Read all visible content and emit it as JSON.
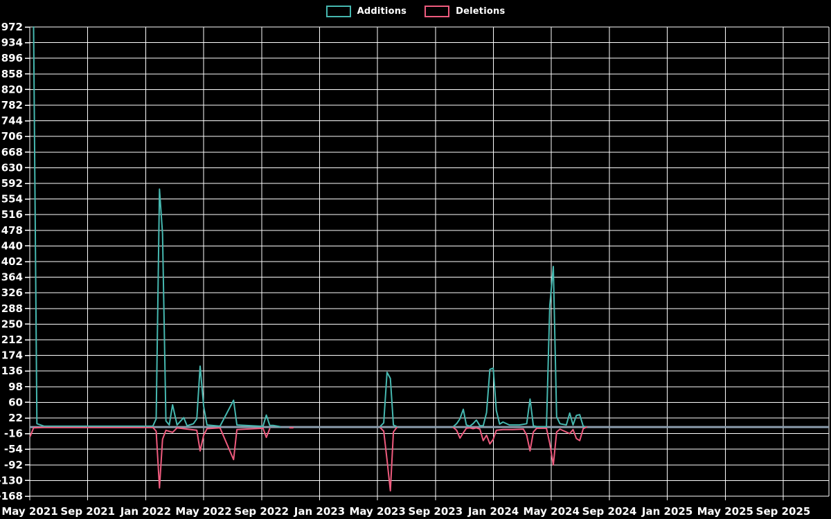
{
  "background_color": "#000000",
  "text_color": "#ffffff",
  "grid_color": "#ffffff",
  "zero_line_color": "#8b9dad",
  "legend": {
    "items": [
      {
        "label": "Additions",
        "color": "#46b8b0"
      },
      {
        "label": "Deletions",
        "color": "#ef5b7e"
      }
    ]
  },
  "chart_data": {
    "type": "line",
    "title": "",
    "xlabel": "",
    "ylabel": "",
    "grid": true,
    "legend_position": "top-center",
    "x_axis": {
      "tick_labels": [
        "May 2021",
        "Sep 2021",
        "Jan 2022",
        "May 2022",
        "Sep 2022",
        "Jan 2023",
        "May 2023",
        "Sep 2023",
        "Jan 2024",
        "May 2024",
        "Sep 2024",
        "Jan 2025",
        "May 2025",
        "Sep 2025"
      ]
    },
    "y_axis": {
      "max": 972,
      "min": -168,
      "step": 38,
      "ticks": [
        972,
        934,
        896,
        858,
        820,
        782,
        744,
        706,
        668,
        630,
        592,
        554,
        516,
        478,
        440,
        402,
        364,
        326,
        288,
        250,
        212,
        174,
        136,
        98,
        60,
        22,
        -16,
        -54,
        -92,
        -130,
        -168
      ]
    },
    "zero_line": true,
    "series": [
      {
        "name": "Additions",
        "color": "#46b8b0",
        "segments": [
          [
            [
              "2021-05-09",
              972
            ],
            [
              "2021-05-16",
              8
            ],
            [
              "2021-06-01",
              2
            ],
            [
              "2022-01-16",
              2
            ],
            [
              "2022-01-23",
              20
            ],
            [
              "2022-01-30",
              578
            ],
            [
              "2022-02-06",
              470
            ],
            [
              "2022-02-13",
              15
            ],
            [
              "2022-02-20",
              5
            ],
            [
              "2022-02-27",
              54
            ],
            [
              "2022-03-06",
              5
            ],
            [
              "2022-03-20",
              23
            ],
            [
              "2022-03-27",
              3
            ],
            [
              "2022-04-10",
              8
            ],
            [
              "2022-04-17",
              20
            ],
            [
              "2022-04-24",
              148
            ],
            [
              "2022-05-01",
              50
            ],
            [
              "2022-05-08",
              5
            ],
            [
              "2022-06-05",
              2
            ],
            [
              "2022-07-03",
              65
            ],
            [
              "2022-07-10",
              5
            ],
            [
              "2022-08-28",
              2
            ],
            [
              "2022-09-04",
              2
            ],
            [
              "2022-09-11",
              29
            ],
            [
              "2022-09-18",
              4
            ],
            [
              "2022-09-25",
              4
            ],
            [
              "2022-10-09",
              1
            ]
          ],
          [
            [
              "2023-05-07",
              2
            ],
            [
              "2023-05-14",
              10
            ],
            [
              "2023-05-21",
              133
            ],
            [
              "2023-05-28",
              118
            ],
            [
              "2023-06-04",
              5
            ],
            [
              "2023-06-11",
              1
            ]
          ],
          [
            [
              "2023-10-08",
              1
            ],
            [
              "2023-10-15",
              8
            ],
            [
              "2023-10-22",
              20
            ],
            [
              "2023-10-29",
              43
            ],
            [
              "2023-11-05",
              5
            ],
            [
              "2023-11-12",
              2
            ],
            [
              "2023-11-19",
              8
            ],
            [
              "2023-11-26",
              17
            ],
            [
              "2023-12-03",
              3
            ],
            [
              "2023-12-10",
              3
            ],
            [
              "2023-12-17",
              35
            ],
            [
              "2023-12-24",
              140
            ],
            [
              "2023-12-31",
              143
            ],
            [
              "2024-01-07",
              40
            ],
            [
              "2024-01-14",
              7
            ],
            [
              "2024-01-21",
              12
            ],
            [
              "2024-02-04",
              5
            ],
            [
              "2024-02-25",
              5
            ],
            [
              "2024-03-10",
              8
            ],
            [
              "2024-03-17",
              68
            ],
            [
              "2024-03-24",
              3
            ],
            [
              "2024-03-31",
              1
            ],
            [
              "2024-04-21",
              1
            ],
            [
              "2024-04-28",
              295
            ],
            [
              "2024-05-05",
              390
            ],
            [
              "2024-05-12",
              25
            ],
            [
              "2024-05-19",
              8
            ],
            [
              "2024-06-02",
              5
            ],
            [
              "2024-06-09",
              34
            ],
            [
              "2024-06-16",
              5
            ],
            [
              "2024-06-23",
              28
            ],
            [
              "2024-06-30",
              30
            ],
            [
              "2024-07-07",
              2
            ],
            [
              "2024-07-14",
              0
            ]
          ]
        ]
      },
      {
        "name": "Deletions",
        "color": "#ef5b7e",
        "segments": [
          [
            [
              "2021-05-02",
              -22
            ],
            [
              "2021-05-09",
              -2
            ],
            [
              "2021-06-01",
              -1
            ],
            [
              "2022-01-16",
              -1
            ],
            [
              "2022-01-23",
              -10
            ],
            [
              "2022-01-30",
              -148
            ],
            [
              "2022-02-06",
              -30
            ],
            [
              "2022-02-13",
              -8
            ],
            [
              "2022-02-27",
              -13
            ],
            [
              "2022-03-06",
              -2
            ],
            [
              "2022-03-20",
              -4
            ],
            [
              "2022-04-17",
              -8
            ],
            [
              "2022-04-24",
              -58
            ],
            [
              "2022-05-01",
              -20
            ],
            [
              "2022-05-08",
              -4
            ],
            [
              "2022-06-05",
              -2
            ],
            [
              "2022-07-03",
              -79
            ],
            [
              "2022-07-10",
              -6
            ],
            [
              "2022-09-04",
              -3
            ],
            [
              "2022-09-11",
              -25
            ],
            [
              "2022-09-18",
              -4
            ]
          ],
          [
            [
              "2022-10-30",
              -2
            ],
            [
              "2022-11-06",
              -2
            ]
          ],
          [
            [
              "2023-05-07",
              -2
            ],
            [
              "2023-05-14",
              -10
            ],
            [
              "2023-05-21",
              -80
            ],
            [
              "2023-05-28",
              -155
            ],
            [
              "2023-06-04",
              -12
            ],
            [
              "2023-06-11",
              -1
            ]
          ],
          [
            [
              "2023-10-08",
              -1
            ],
            [
              "2023-10-15",
              -8
            ],
            [
              "2023-10-22",
              -27
            ],
            [
              "2023-10-29",
              -14
            ],
            [
              "2023-11-05",
              -3
            ],
            [
              "2023-11-12",
              -2
            ],
            [
              "2023-11-19",
              -4
            ],
            [
              "2023-11-26",
              -2
            ],
            [
              "2023-12-03",
              -5
            ],
            [
              "2023-12-10",
              -33
            ],
            [
              "2023-12-17",
              -20
            ],
            [
              "2023-12-24",
              -41
            ],
            [
              "2023-12-31",
              -30
            ],
            [
              "2024-01-07",
              -8
            ],
            [
              "2024-01-21",
              -6
            ],
            [
              "2024-02-11",
              -6
            ],
            [
              "2024-03-03",
              -5
            ],
            [
              "2024-03-10",
              -20
            ],
            [
              "2024-03-17",
              -58
            ],
            [
              "2024-03-24",
              -12
            ],
            [
              "2024-03-31",
              -3
            ],
            [
              "2024-04-21",
              -3
            ],
            [
              "2024-04-28",
              -40
            ],
            [
              "2024-05-05",
              -92
            ],
            [
              "2024-05-12",
              -12
            ],
            [
              "2024-05-19",
              -5
            ],
            [
              "2024-06-09",
              -16
            ],
            [
              "2024-06-16",
              -6
            ],
            [
              "2024-06-23",
              -28
            ],
            [
              "2024-06-30",
              -33
            ],
            [
              "2024-07-07",
              -4
            ],
            [
              "2024-07-14",
              0
            ]
          ]
        ]
      }
    ]
  }
}
